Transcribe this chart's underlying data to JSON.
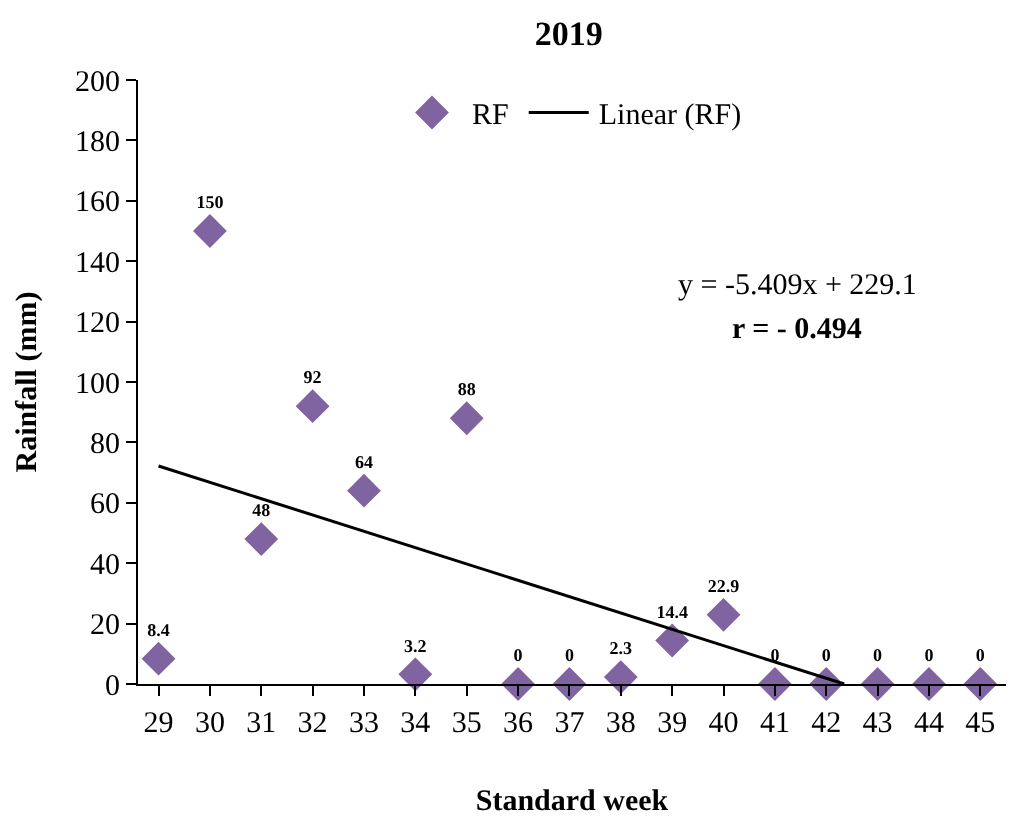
{
  "chart_data": {
    "type": "scatter",
    "title": "2019",
    "xlabel": "Standard week",
    "ylabel": "Rainfall (mm)",
    "x": [
      29,
      30,
      31,
      32,
      33,
      34,
      35,
      36,
      37,
      38,
      39,
      40,
      41,
      42,
      43,
      44,
      45
    ],
    "series": [
      {
        "name": "RF",
        "color": "#8064a2",
        "marker": "diamond",
        "values": [
          8.4,
          150,
          48,
          92,
          64,
          3.2,
          88,
          0,
          0,
          2.3,
          14.4,
          22.9,
          0,
          0,
          0,
          0,
          0
        ],
        "value_labels": [
          "8.4",
          "150",
          "48",
          "92",
          "64",
          "3.2",
          "88",
          "0",
          "0",
          "2.3",
          "14.4",
          "22.9",
          "0",
          "0",
          "0",
          "0",
          "0"
        ]
      },
      {
        "name": "Linear (RF)",
        "type": "line",
        "color": "#000000",
        "line_style": "solid",
        "x": [
          29,
          42.35
        ],
        "values": [
          72.2,
          0
        ]
      }
    ],
    "xlim": [
      28.6,
      45.5
    ],
    "xticks": [
      29,
      30,
      31,
      32,
      33,
      34,
      35,
      36,
      37,
      38,
      39,
      40,
      41,
      42,
      43,
      44,
      45
    ],
    "ylim": [
      0,
      200
    ],
    "yticks": [
      0,
      20,
      40,
      60,
      80,
      100,
      120,
      140,
      160,
      180,
      200
    ],
    "legend": "top",
    "annotations": [
      "y = -5.409x + 229.1",
      "r = - 0.494"
    ]
  }
}
